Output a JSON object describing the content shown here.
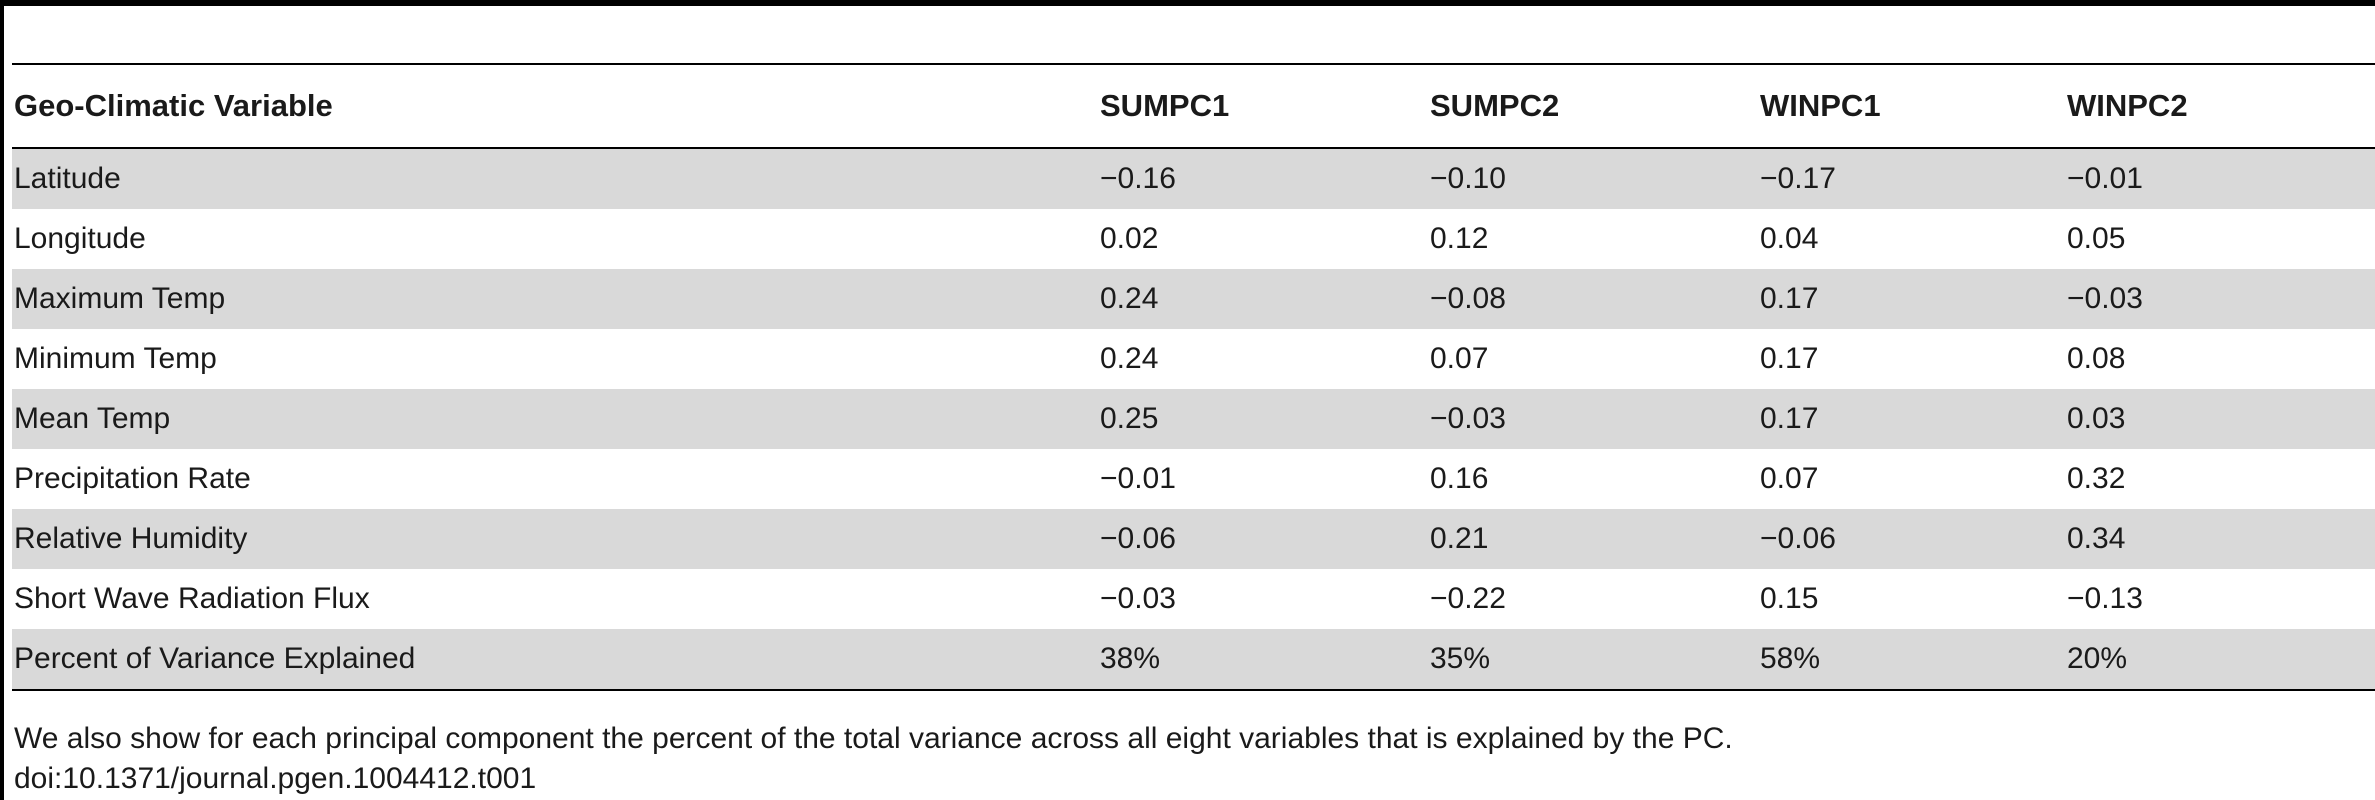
{
  "table": {
    "columns": [
      "Geo-Climatic Variable",
      "SUMPC1",
      "SUMPC2",
      "WINPC1",
      "WINPC2"
    ],
    "rows": [
      [
        "Latitude",
        "−0.16",
        "−0.10",
        "−0.17",
        "−0.01"
      ],
      [
        "Longitude",
        "0.02",
        "0.12",
        "0.04",
        "0.05"
      ],
      [
        "Maximum Temp",
        "0.24",
        "−0.08",
        "0.17",
        "−0.03"
      ],
      [
        "Minimum Temp",
        "0.24",
        "0.07",
        "0.17",
        "0.08"
      ],
      [
        "Mean Temp",
        "0.25",
        "−0.03",
        "0.17",
        "0.03"
      ],
      [
        "Precipitation Rate",
        "−0.01",
        "0.16",
        "0.07",
        "0.32"
      ],
      [
        "Relative Humidity",
        "−0.06",
        "0.21",
        "−0.06",
        "0.34"
      ],
      [
        "Short Wave Radiation Flux",
        "−0.03",
        "−0.22",
        "0.15",
        "−0.13"
      ],
      [
        "Percent of Variance Explained",
        "38%",
        "35%",
        "58%",
        "20%"
      ]
    ]
  },
  "footnote": {
    "line1": "We also show for each principal component the percent of the total variance across all eight variables that is explained by the PC.",
    "line2": "doi:10.1371/journal.pgen.1004412.t001"
  }
}
